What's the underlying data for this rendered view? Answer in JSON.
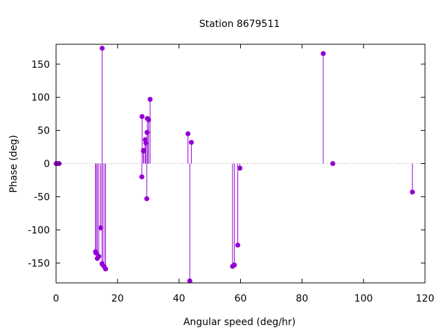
{
  "chart_data": {
    "type": "scatter",
    "style": "impulses-with-points",
    "title": "Station 8679511",
    "xlabel": "Angular speed (deg/hr)",
    "ylabel": "Phase (deg)",
    "xlim": [
      0,
      120
    ],
    "ylim": [
      -180,
      180
    ],
    "xticks": [
      0,
      20,
      40,
      60,
      80,
      100,
      120
    ],
    "yticks": [
      -150,
      -100,
      -50,
      0,
      50,
      100,
      150
    ],
    "grid": false,
    "zero_line": "dotted",
    "color": "#9400d3",
    "points": [
      {
        "x": 0.04,
        "y": 0
      },
      {
        "x": 0.5,
        "y": 0
      },
      {
        "x": 1.0,
        "y": 0
      },
      {
        "x": 12.85,
        "y": -133
      },
      {
        "x": 13.0,
        "y": -135
      },
      {
        "x": 13.4,
        "y": -143
      },
      {
        "x": 13.9,
        "y": -140
      },
      {
        "x": 14.5,
        "y": -97
      },
      {
        "x": 14.96,
        "y": -151
      },
      {
        "x": 15.0,
        "y": 174
      },
      {
        "x": 15.04,
        "y": -152
      },
      {
        "x": 15.6,
        "y": -155
      },
      {
        "x": 16.1,
        "y": -159
      },
      {
        "x": 27.9,
        "y": -20
      },
      {
        "x": 27.97,
        "y": 71
      },
      {
        "x": 28.4,
        "y": 19
      },
      {
        "x": 28.5,
        "y": 20
      },
      {
        "x": 29.0,
        "y": 36
      },
      {
        "x": 29.2,
        "y": 31
      },
      {
        "x": 29.5,
        "y": -53
      },
      {
        "x": 29.6,
        "y": 47
      },
      {
        "x": 29.7,
        "y": 68
      },
      {
        "x": 30.1,
        "y": 66
      },
      {
        "x": 30.6,
        "y": 97
      },
      {
        "x": 42.9,
        "y": 45
      },
      {
        "x": 43.5,
        "y": -177
      },
      {
        "x": 44.0,
        "y": 32
      },
      {
        "x": 57.4,
        "y": -155
      },
      {
        "x": 58.0,
        "y": -153
      },
      {
        "x": 59.1,
        "y": -123
      },
      {
        "x": 59.8,
        "y": -7
      },
      {
        "x": 86.9,
        "y": 166
      },
      {
        "x": 90.0,
        "y": 0
      },
      {
        "x": 115.9,
        "y": -43
      }
    ]
  }
}
